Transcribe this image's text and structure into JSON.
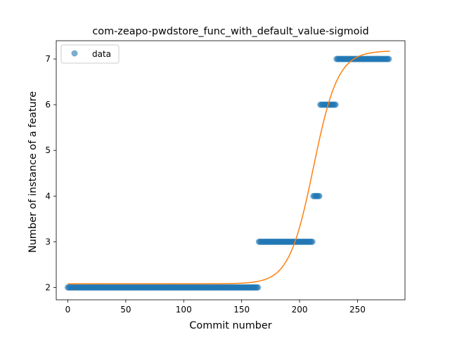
{
  "chart_data": {
    "type": "scatter",
    "title": "com-zeapo-pwdstore_func_with_default_value-sigmoid",
    "xlabel": "Commit number",
    "ylabel": "Number of instance of a feature",
    "xlim": [
      -10,
      291
    ],
    "ylim": [
      1.73,
      7.4
    ],
    "xticks": [
      0,
      50,
      100,
      150,
      200,
      250
    ],
    "yticks": [
      2,
      3,
      4,
      5,
      6,
      7
    ],
    "grid": false,
    "legend": {
      "placement": "top-left",
      "entries": [
        "data"
      ]
    },
    "colors": {
      "data": "#1f77b4",
      "fit": "#ff7f0e"
    },
    "series": [
      {
        "name": "data",
        "kind": "scatter",
        "runs": [
          {
            "x_start": 0,
            "x_end": 165,
            "y": 2
          },
          {
            "x_start": 165,
            "x_end": 212,
            "y": 3
          },
          {
            "x_start": 212,
            "x_end": 218,
            "y": 4
          },
          {
            "x_start": 218,
            "x_end": 232,
            "y": 6
          },
          {
            "x_start": 232,
            "x_end": 278,
            "y": 7
          }
        ]
      },
      {
        "kind": "line",
        "model": "sigmoid",
        "params": {
          "L": 5.1,
          "x0": 212,
          "k": 0.095,
          "b": 2.08
        },
        "x_range": [
          0,
          278
        ]
      }
    ]
  }
}
